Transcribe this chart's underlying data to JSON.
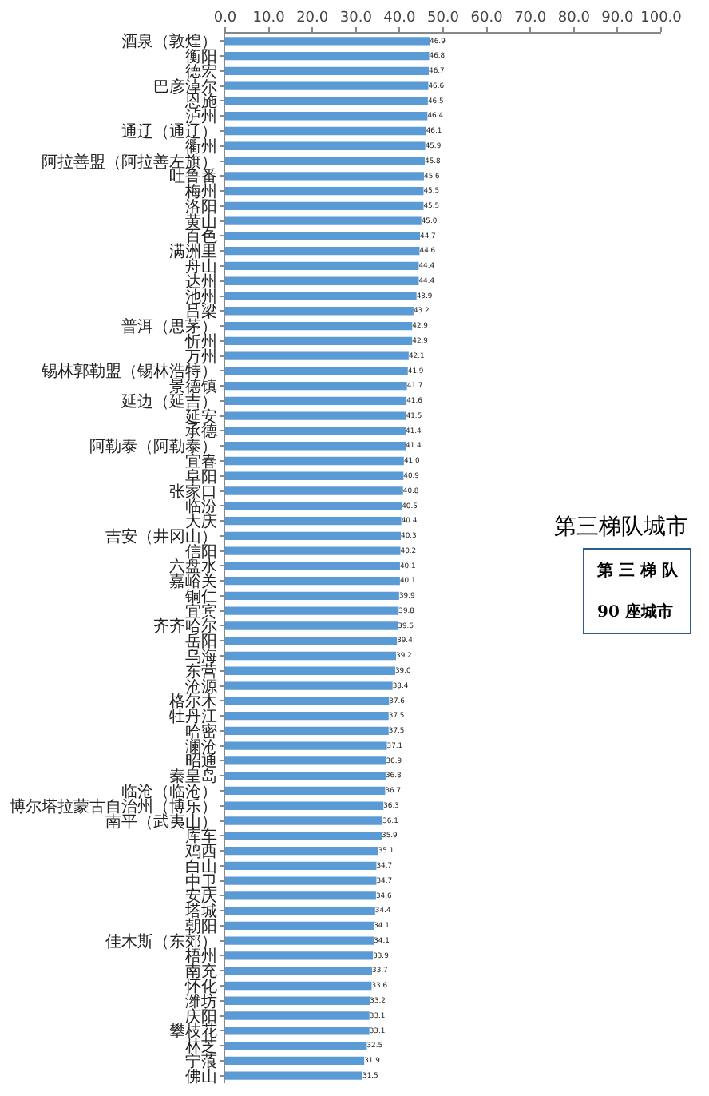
{
  "chart_data": {
    "type": "bar",
    "orientation": "horizontal",
    "categories": [
      "酒泉（敦煌）",
      "衡阳",
      "德宏",
      "巴彦淖尔",
      "恩施",
      "泸州",
      "通辽（通辽）",
      "衢州",
      "阿拉善盟（阿拉善左旗）",
      "吐鲁番",
      "梅州",
      "洛阳",
      "黄山",
      "百色",
      "满洲里",
      "舟山",
      "达州",
      "池州",
      "吕梁",
      "普洱（思茅）",
      "忻州",
      "万州",
      "锡林郭勒盟（锡林浩特）",
      "景德镇",
      "延边（延吉）",
      "延安",
      "承德",
      "阿勒泰（阿勒泰）",
      "宜春",
      "阜阳",
      "张家口",
      "临汾",
      "大庆",
      "吉安（井冈山）",
      "信阳",
      "六盘水",
      "嘉峪关",
      "铜仁",
      "宜宾",
      "齐齐哈尔",
      "岳阳",
      "乌海",
      "东营",
      "沧源",
      "格尔木",
      "牡丹江",
      "哈密",
      "澜沧",
      "昭通",
      "秦皇岛",
      "临沧（临沧）",
      "博尔塔拉蒙古自治州（博乐）",
      "南平（武夷山）",
      "库车",
      "鸡西",
      "白山",
      "中卫",
      "安庆",
      "塔城",
      "朝阳",
      "佳木斯（东郊）",
      "梧州",
      "南充",
      "怀化",
      "潍坊",
      "庆阳",
      "攀枝花",
      "林芝",
      "宁蒗",
      "佛山"
    ],
    "values": [
      46.9,
      46.8,
      46.7,
      46.6,
      46.5,
      46.4,
      46.1,
      45.9,
      45.8,
      45.6,
      45.5,
      45.5,
      45.0,
      44.7,
      44.6,
      44.4,
      44.4,
      43.9,
      43.2,
      42.9,
      42.9,
      42.1,
      41.9,
      41.7,
      41.6,
      41.5,
      41.4,
      41.4,
      41.0,
      40.9,
      40.8,
      40.5,
      40.4,
      40.3,
      40.2,
      40.1,
      40.1,
      39.9,
      39.8,
      39.6,
      39.4,
      39.2,
      39.0,
      38.4,
      37.6,
      37.5,
      37.5,
      37.1,
      36.9,
      36.8,
      36.7,
      36.3,
      36.1,
      35.9,
      35.1,
      34.7,
      34.7,
      34.6,
      34.4,
      34.1,
      34.1,
      33.9,
      33.7,
      33.6,
      33.2,
      33.1,
      33.1,
      32.5,
      31.9,
      31.5
    ],
    "value_labels": [
      "46.9",
      "46.8",
      "46.7",
      "46.6",
      "46.5",
      "46.4",
      "46.1",
      "45.9",
      "45.8",
      "45.6",
      "45.5",
      "45.5",
      "45.0",
      "44.7",
      "44.6",
      "44.4",
      "44.4",
      "43.9",
      "43.2",
      "42.9",
      "42.9",
      "42.1",
      "41.9",
      "41.7",
      "41.6",
      "41.5",
      "41.4",
      "41.4",
      "41.0",
      "40.9",
      "40.8",
      "40.5",
      "40.4",
      "40.3",
      "40.2",
      "40.1",
      "40.1",
      "39.9",
      "39.8",
      "39.6",
      "39.4",
      "39.2",
      "39.0",
      "38.4",
      "37.6",
      "37.5",
      "37.5",
      "37.1",
      "36.9",
      "36.8",
      "36.7",
      "36.3",
      "36.1",
      "35.9",
      "35.1",
      "34.7",
      "34.7",
      "34.6",
      "34.4",
      "34.1",
      "34.1",
      "33.9",
      "33.7",
      "33.6",
      "33.2",
      "33.1",
      "33.1",
      "32.5",
      "31.9",
      "31.5"
    ],
    "color": "#5b9bd5",
    "xlim": [
      0,
      100
    ],
    "xticks": [
      {
        "value": 0,
        "label": "0.0"
      },
      {
        "value": 10,
        "label": "10.0"
      },
      {
        "value": 20,
        "label": "20.0"
      },
      {
        "value": 30,
        "label": "30.0"
      },
      {
        "value": 40,
        "label": "40.0"
      },
      {
        "value": 50,
        "label": "50.0"
      },
      {
        "value": 60,
        "label": "60.0"
      },
      {
        "value": 70,
        "label": "70.0"
      },
      {
        "value": 80,
        "label": "80.0"
      },
      {
        "value": 90,
        "label": "90.0"
      },
      {
        "value": 100,
        "label": "100.0"
      }
    ],
    "annotations": [
      "第三梯队城市",
      "第 三 梯 队",
      "90 座城市"
    ]
  }
}
